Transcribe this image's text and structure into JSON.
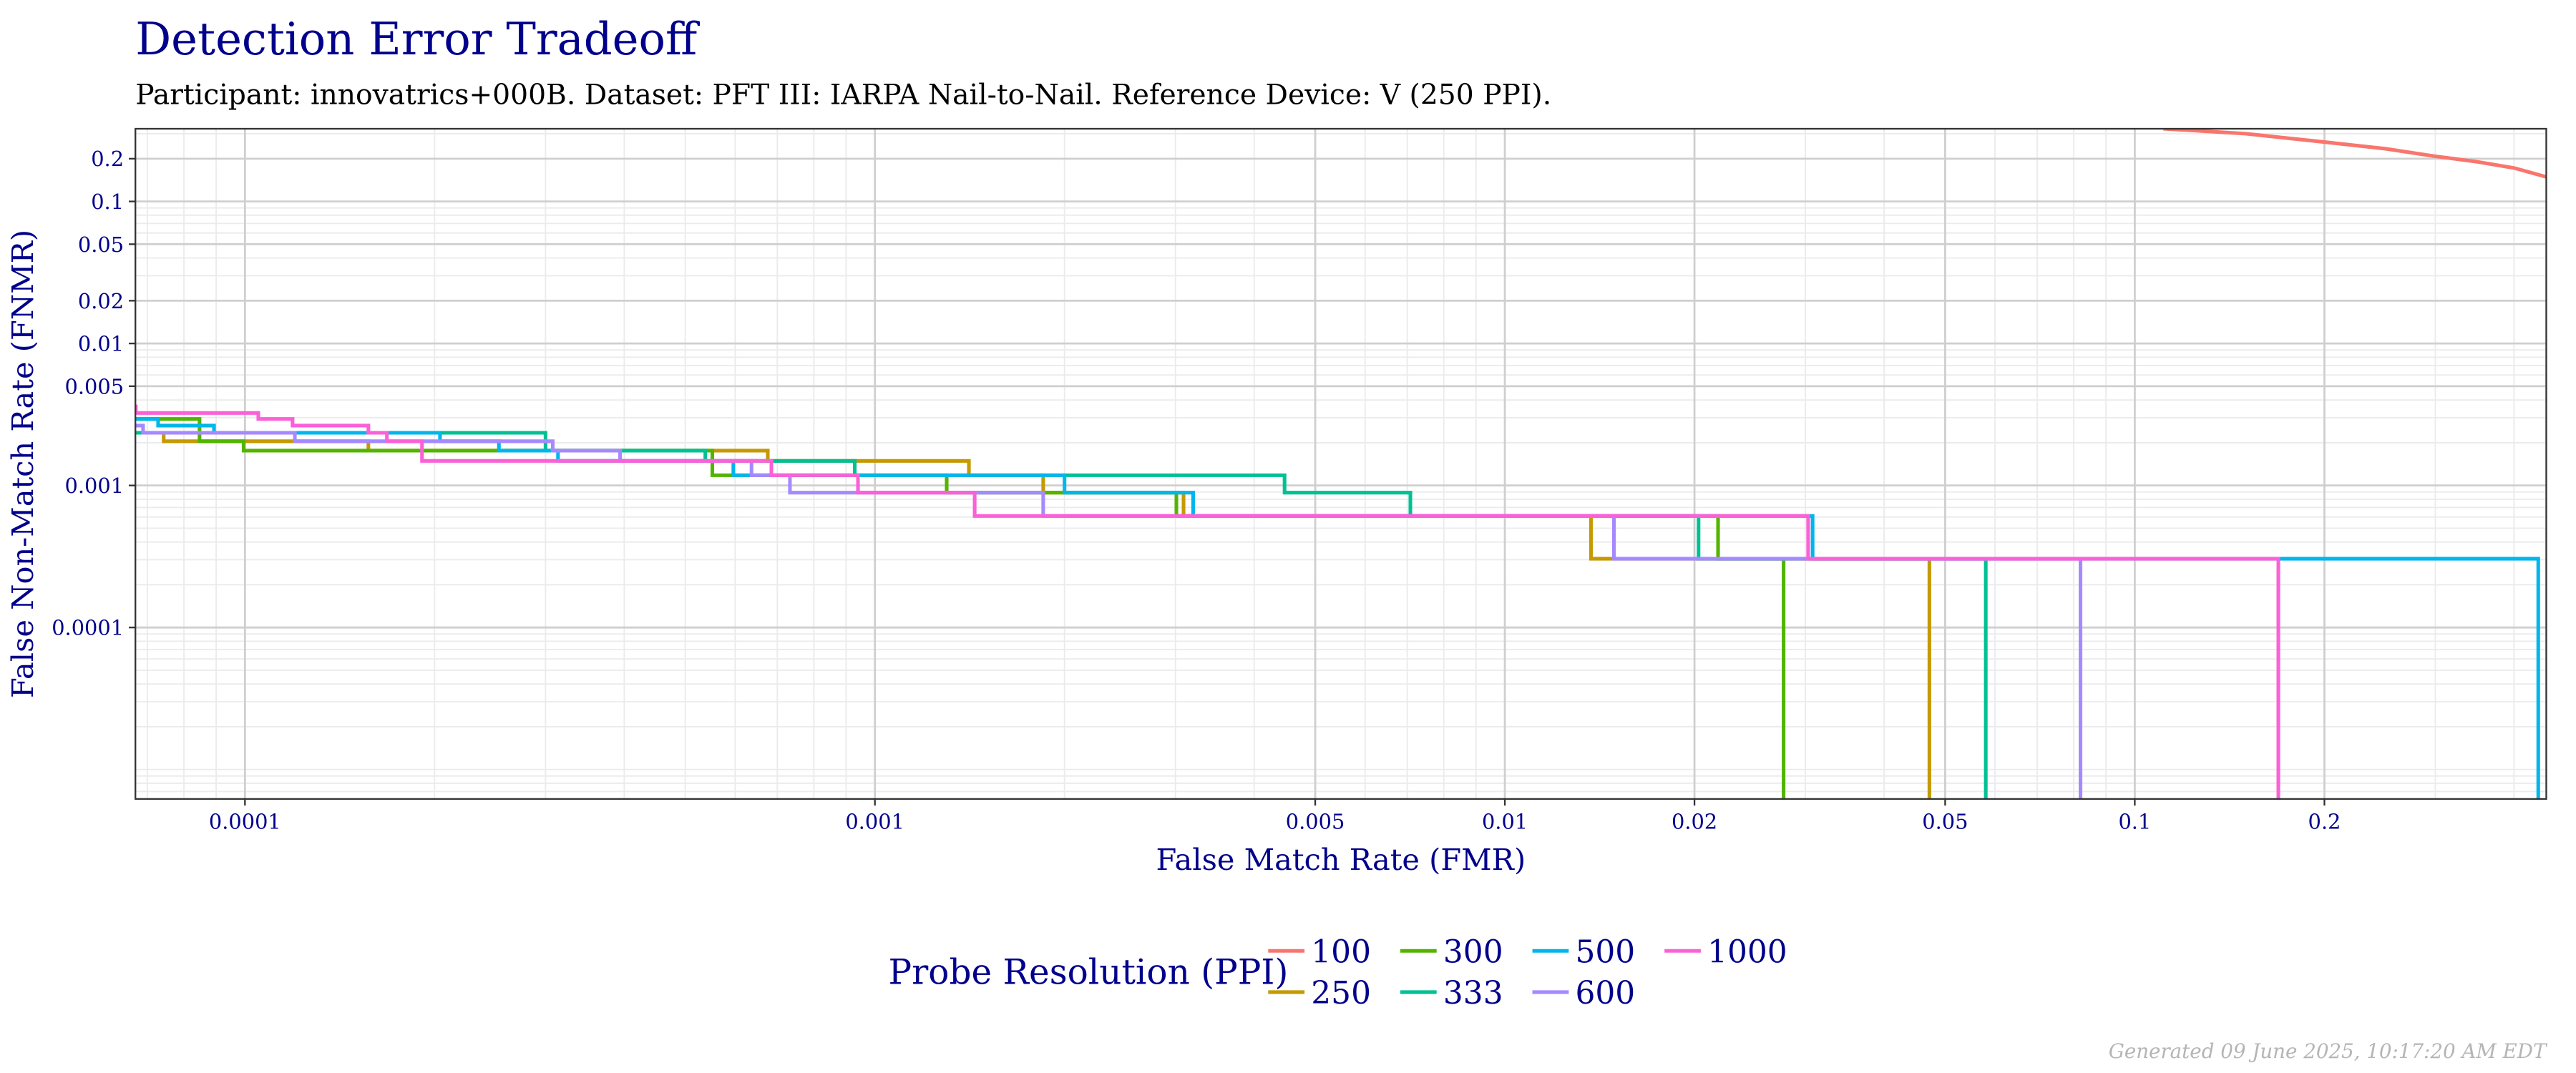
{
  "title": "Detection Error Tradeoff",
  "subtitle": "Participant: innovatrics+000B. Dataset: PFT III: IARPA Nail-to-Nail. Reference Device: V (250 PPI).",
  "footer": "Generated 09 June 2025, 10:17:20 AM EDT",
  "chart_data": {
    "type": "line",
    "step": true,
    "title": "Detection Error Tradeoff",
    "xlabel": "False Match Rate (FMR)",
    "ylabel": "False Non-Match Rate (FNMR)",
    "xscale": "log",
    "yscale": "log",
    "xlim": [
      6.7e-05,
      0.45
    ],
    "ylim": [
      6.2e-06,
      0.325
    ],
    "grid": true,
    "xticks": [
      {
        "value": 0.0001,
        "label": "0.0001"
      },
      {
        "value": 0.001,
        "label": "0.001"
      },
      {
        "value": 0.005,
        "label": "0.005"
      },
      {
        "value": 0.01,
        "label": "0.01"
      },
      {
        "value": 0.02,
        "label": "0.02"
      },
      {
        "value": 0.05,
        "label": "0.05"
      },
      {
        "value": 0.1,
        "label": "0.1"
      },
      {
        "value": 0.2,
        "label": "0.2"
      }
    ],
    "yticks": [
      {
        "value": 0.2,
        "label": "0.2"
      },
      {
        "value": 0.1,
        "label": "0.1"
      },
      {
        "value": 0.05,
        "label": "0.05"
      },
      {
        "value": 0.02,
        "label": "0.02"
      },
      {
        "value": 0.01,
        "label": "0.01"
      },
      {
        "value": 0.005,
        "label": "0.005"
      },
      {
        "value": 0.001,
        "label": "0.001"
      },
      {
        "value": 0.0001,
        "label": "0.0001"
      }
    ],
    "legend": {
      "title": "Probe Resolution (PPI)",
      "position": "bottom"
    },
    "series": [
      {
        "name": "100",
        "color": "#F8766D",
        "step": false,
        "points": [
          [
            0.111,
            0.325
          ],
          [
            0.15,
            0.3
          ],
          [
            0.2,
            0.262
          ],
          [
            0.25,
            0.235
          ],
          [
            0.3,
            0.208
          ],
          [
            0.35,
            0.19
          ],
          [
            0.4,
            0.172
          ],
          [
            0.45,
            0.149
          ]
        ]
      },
      {
        "name": "250",
        "color": "#C49A00",
        "points": [
          [
            6.7e-05,
            0.00235
          ],
          [
            7.43e-05,
            0.00205
          ],
          [
            0.000157,
            0.00176
          ],
          [
            0.000676,
            0.00149
          ],
          [
            0.00141,
            0.00118
          ],
          [
            0.00185,
            0.00089
          ],
          [
            0.00309,
            0.00061
          ],
          [
            0.0137,
            0.000305
          ],
          [
            0.0472,
            6.2e-06
          ]
        ]
      },
      {
        "name": "300",
        "color": "#53B400",
        "points": [
          [
            6.7e-05,
            0.00294
          ],
          [
            8.47e-05,
            0.00205
          ],
          [
            9.95e-05,
            0.00176
          ],
          [
            0.000552,
            0.00118
          ],
          [
            0.0013,
            0.00089
          ],
          [
            0.00301,
            0.00061
          ],
          [
            0.0218,
            0.000305
          ],
          [
            0.0277,
            6.2e-06
          ]
        ]
      },
      {
        "name": "333",
        "color": "#00C094",
        "points": [
          [
            6.7e-05,
            0.00235
          ],
          [
            0.0003,
            0.00176
          ],
          [
            0.000538,
            0.00149
          ],
          [
            0.000929,
            0.00118
          ],
          [
            0.00447,
            0.00089
          ],
          [
            0.00708,
            0.00061
          ],
          [
            0.0203,
            0.000305
          ],
          [
            0.058,
            6.2e-06
          ]
        ]
      },
      {
        "name": "500",
        "color": "#00B6EB",
        "points": [
          [
            6.7e-05,
            0.00294
          ],
          [
            7.28e-05,
            0.00264
          ],
          [
            8.93e-05,
            0.00235
          ],
          [
            0.000204,
            0.00205
          ],
          [
            0.000253,
            0.00176
          ],
          [
            0.000314,
            0.00149
          ],
          [
            0.000596,
            0.00118
          ],
          [
            0.002,
            0.00089
          ],
          [
            0.0032,
            0.00061
          ],
          [
            0.0308,
            0.000305
          ],
          [
            0.437,
            6.2e-06
          ]
        ]
      },
      {
        "name": "600",
        "color": "#A58AFF",
        "points": [
          [
            6.7e-05,
            0.00264
          ],
          [
            6.89e-05,
            0.00235
          ],
          [
            0.00012,
            0.00205
          ],
          [
            0.000308,
            0.00176
          ],
          [
            0.000394,
            0.00149
          ],
          [
            0.000637,
            0.00118
          ],
          [
            0.000733,
            0.00089
          ],
          [
            0.00185,
            0.00061
          ],
          [
            0.0149,
            0.000305
          ],
          [
            0.082,
            6.2e-06
          ]
        ]
      },
      {
        "name": "1000",
        "color": "#FB61D7",
        "points": [
          [
            6.7e-05,
            0.0036
          ],
          [
            6.71e-05,
            0.00324
          ],
          [
            0.000105,
            0.00294
          ],
          [
            0.000119,
            0.00264
          ],
          [
            0.000157,
            0.00235
          ],
          [
            0.000168,
            0.00205
          ],
          [
            0.000191,
            0.00149
          ],
          [
            0.000685,
            0.00118
          ],
          [
            0.00094,
            0.00089
          ],
          [
            0.00144,
            0.00061
          ],
          [
            0.0303,
            0.000305
          ],
          [
            0.169,
            6.2e-06
          ]
        ]
      }
    ]
  }
}
